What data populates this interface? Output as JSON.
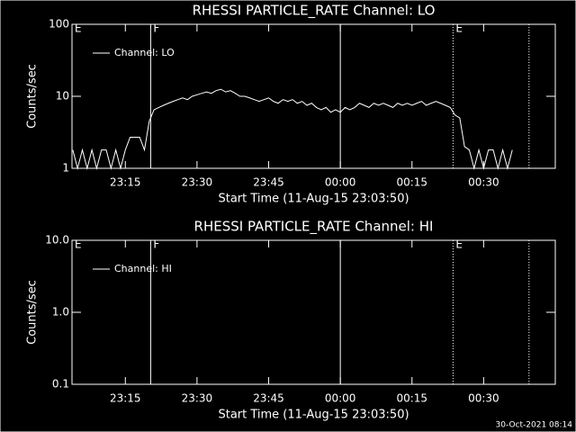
{
  "chart_data": [
    {
      "type": "line",
      "title": "RHESSI PARTICLE_RATE Channel: LO",
      "ylabel": "Counts/sec",
      "xlabel": "Start Time (11-Aug-15 23:03:50)",
      "log_y": true,
      "ylim": [
        1,
        100
      ],
      "yticks": [
        1,
        10,
        100
      ],
      "xlim": [
        3.833,
        105
      ],
      "xticks": [
        {
          "value": 15,
          "label": "23:15"
        },
        {
          "value": 30,
          "label": "23:30"
        },
        {
          "value": 45,
          "label": "23:45"
        },
        {
          "value": 60,
          "label": "00:00"
        },
        {
          "value": 75,
          "label": "00:15"
        },
        {
          "value": 90,
          "label": "00:30"
        }
      ],
      "markers": [
        {
          "x": 3.833,
          "label": "E",
          "style": "none"
        },
        {
          "x": 20.3,
          "label": "F",
          "style": "solid"
        },
        {
          "x": 60,
          "style": "solid"
        },
        {
          "x": 83.6,
          "label": "E",
          "style": "dotted"
        },
        {
          "x": 99.5,
          "style": "dotted"
        }
      ],
      "series": [
        {
          "name": "Channel: LO",
          "color": "#ffffff",
          "x": [
            4,
            5,
            6,
            7,
            8,
            9,
            10,
            11,
            12,
            13,
            14,
            15,
            16,
            17,
            18,
            19,
            20,
            21,
            22,
            23,
            24,
            25,
            26,
            27,
            28,
            29,
            30,
            31,
            32,
            33,
            34,
            35,
            36,
            37,
            38,
            39,
            40,
            41,
            42,
            43,
            44,
            45,
            46,
            47,
            48,
            49,
            50,
            51,
            52,
            53,
            54,
            55,
            56,
            57,
            58,
            59,
            60,
            61,
            62,
            63,
            64,
            65,
            66,
            67,
            68,
            69,
            70,
            71,
            72,
            73,
            74,
            75,
            76,
            77,
            78,
            79,
            80,
            81,
            82,
            83,
            84,
            85,
            86,
            87,
            88,
            89,
            90,
            91,
            92,
            93,
            94,
            95,
            96
          ],
          "values": [
            1.8,
            1,
            1.8,
            1,
            1.8,
            1,
            1.8,
            1.8,
            1,
            1.8,
            1,
            1.8,
            2.7,
            2.7,
            2.7,
            1.8,
            4.5,
            6.5,
            7,
            7.5,
            8,
            8.5,
            9,
            9.5,
            9,
            10,
            10.5,
            11,
            11.5,
            11,
            12,
            12.5,
            11.5,
            12,
            11,
            10,
            10,
            9.5,
            9,
            8.5,
            9,
            9.5,
            8.5,
            8,
            9,
            8.5,
            9,
            8,
            8.5,
            7.5,
            8,
            7,
            6.5,
            7,
            6,
            6.5,
            6,
            7,
            6.5,
            7,
            8,
            7.5,
            7,
            8,
            7.5,
            8,
            7.5,
            7,
            8,
            7.5,
            8,
            7.5,
            8,
            8.5,
            7.5,
            8,
            8.5,
            8,
            7.5,
            7,
            5.5,
            5,
            2,
            1.8,
            1,
            1.8,
            1,
            1.8,
            1.8,
            1,
            1.8,
            1,
            1.8
          ]
        }
      ]
    },
    {
      "type": "line",
      "title": "RHESSI PARTICLE_RATE Channel: HI",
      "ylabel": "Counts/sec",
      "xlabel": "Start Time (11-Aug-15 23:03:50)",
      "log_y": true,
      "ylim": [
        0.1,
        10
      ],
      "yticks": [
        0.1,
        {
          "value": 1,
          "label": "1.0"
        },
        {
          "value": 10,
          "label": "10.0"
        }
      ],
      "xlim": [
        3.833,
        105
      ],
      "xticks": [
        {
          "value": 15,
          "label": "23:15"
        },
        {
          "value": 30,
          "label": "23:30"
        },
        {
          "value": 45,
          "label": "23:45"
        },
        {
          "value": 60,
          "label": "00:00"
        },
        {
          "value": 75,
          "label": "00:15"
        },
        {
          "value": 90,
          "label": "00:30"
        }
      ],
      "markers": [
        {
          "x": 3.833,
          "label": "E",
          "style": "none"
        },
        {
          "x": 20.3,
          "label": "F",
          "style": "solid"
        },
        {
          "x": 60,
          "style": "solid"
        },
        {
          "x": 83.6,
          "label": "E",
          "style": "dotted"
        },
        {
          "x": 99.5,
          "style": "dotted"
        }
      ],
      "series": [
        {
          "name": "Channel: HI",
          "color": "#ffffff",
          "x": [],
          "values": []
        }
      ]
    }
  ],
  "footer": "30-Oct-2021 08:14"
}
